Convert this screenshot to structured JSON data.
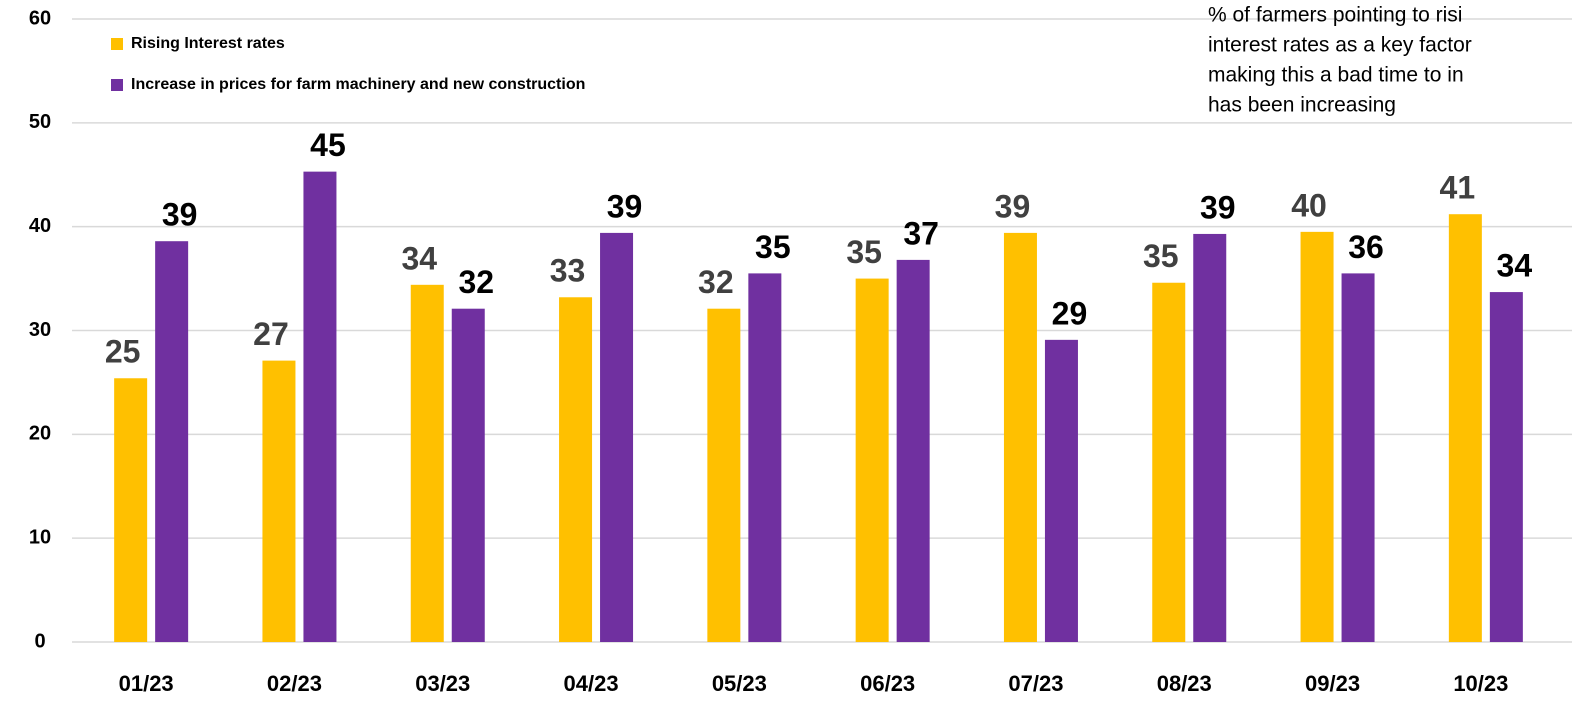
{
  "chart_data": {
    "type": "bar",
    "annotation": [
      "% of farmers pointing to risi",
      "interest rates as a key factor",
      "making this a bad time to in",
      "has been increasing"
    ],
    "categories": [
      "01/23",
      "02/23",
      "03/23",
      "04/23",
      "05/23",
      "06/23",
      "07/23",
      "08/23",
      "09/23",
      "10/23"
    ],
    "series": [
      {
        "name": "Rising Interest rates",
        "color": "#ffc000",
        "label_color": "#404040",
        "values": [
          25.4,
          27.1,
          34.4,
          33.2,
          32.1,
          35.0,
          39.4,
          34.6,
          39.5,
          41.2
        ],
        "value_labels": [
          "25",
          "27",
          "34",
          "33",
          "32",
          "35",
          "39",
          "35",
          "40",
          "41"
        ]
      },
      {
        "name": "Increase in prices for farm machinery and new construction",
        "color": "#7030a0",
        "label_color": "#000000",
        "values": [
          38.6,
          45.3,
          32.1,
          39.4,
          35.5,
          36.8,
          29.1,
          39.3,
          35.5,
          33.7
        ],
        "value_labels": [
          "39",
          "45",
          "32",
          "39",
          "35",
          "37",
          "29",
          "39",
          "36",
          "34"
        ]
      }
    ],
    "ylim": [
      0,
      60
    ],
    "yticks": [
      0,
      10,
      20,
      30,
      40,
      50,
      60
    ],
    "grid": true,
    "legend": "top-left"
  }
}
